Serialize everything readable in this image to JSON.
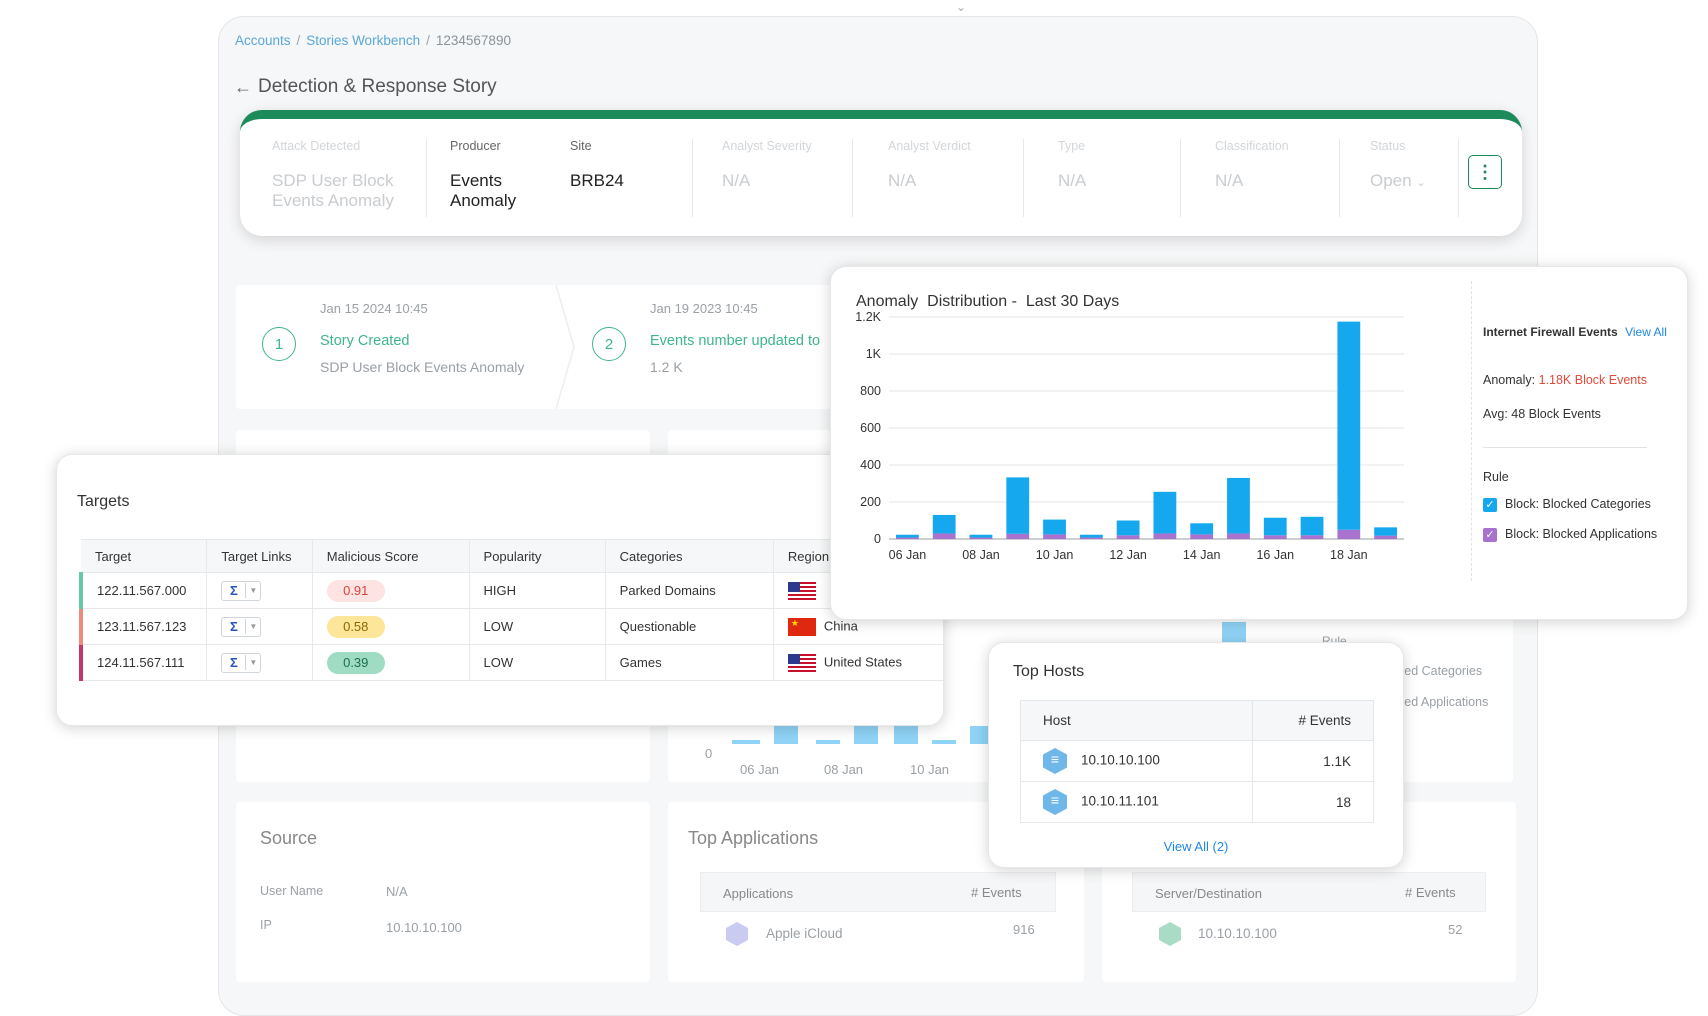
{
  "breadcrumb": {
    "accounts": "Accounts",
    "workbench": "Stories Workbench",
    "sep": "/",
    "id": "1234567890"
  },
  "page_title": "Detection & Response Story",
  "header": {
    "attack_label": "Attack Detected",
    "attack_value_1": "SDP User Block",
    "attack_value_2": "Events Anomaly",
    "producer_label": "Producer",
    "producer_value_1": "Events",
    "producer_value_2": "Anomaly",
    "site_label": "Site",
    "site_value": "BRB24",
    "severity_label": "Analyst Severity",
    "severity_value": "N/A",
    "verdict_label": "Analyst Verdict",
    "verdict_value": "N/A",
    "type_label": "Type",
    "type_value": "N/A",
    "classification_label": "Classification",
    "classification_value": "N/A",
    "status_label": "Status",
    "status_value": "Open"
  },
  "timeline": [
    {
      "num": "1",
      "date": "Jan 15 2024 10:45",
      "title": "Story Created",
      "sub": "SDP User Block Events Anomaly"
    },
    {
      "num": "2",
      "date": "Jan 19 2023 10:45",
      "title": "Events number updated to",
      "sub": "1.2 K"
    }
  ],
  "targets": {
    "title": "Targets",
    "headers": [
      "Target",
      "Target Links",
      "Malicious Score",
      "Popularity",
      "Categories",
      "Region"
    ],
    "rows": [
      {
        "target": "122.11.567.000",
        "score": "0.91",
        "popularity": "HIGH",
        "category": "Parked Domains",
        "region": "",
        "accent": "#67c8a6",
        "pill_bg": "#fde3e2",
        "pill_fg": "#d9423a",
        "flag": "us"
      },
      {
        "target": "123.11.567.123",
        "score": "0.58",
        "popularity": "LOW",
        "category": "Questionable",
        "region": "China",
        "accent": "#f08a80",
        "pill_bg": "#fde59a",
        "pill_fg": "#8a6a00",
        "flag": "cn"
      },
      {
        "target": "124.11.567.111",
        "score": "0.39",
        "popularity": "LOW",
        "category": "Games",
        "region": "United States",
        "accent": "#c0396e",
        "pill_bg": "#9fdcc3",
        "pill_fg": "#1c6e4d",
        "flag": "us"
      }
    ]
  },
  "anomaly": {
    "title": "Anomaly  Distribution -  Last 30 Days",
    "firewall_label": "Internet Firewall Events",
    "view_all": "View All",
    "anomaly_label": "Anomaly:",
    "anomaly_value": "1.18K Block Events",
    "avg_label": "Avg:",
    "avg_value": "48 Block Events",
    "rule_label": "Rule",
    "rule_1": "Block: Blocked Categories",
    "rule_2": "Block: Blocked Applications",
    "colors": {
      "categories": "#16a8ee",
      "applications": "#a773cf"
    }
  },
  "chart_data": {
    "type": "bar",
    "stacked": true,
    "x_tick_labels": [
      "06 Jan",
      "08 Jan",
      "10 Jan",
      "12 Jan",
      "14 Jan",
      "16 Jan",
      "18 Jan"
    ],
    "y_ticks": [
      "0",
      "200",
      "400",
      "600",
      "800",
      "1K",
      "1.2K"
    ],
    "ylim": [
      0,
      1200
    ],
    "grid": true,
    "series": [
      {
        "name": "Block: Blocked Categories",
        "values": [
          15,
          100,
          15,
          305,
          80,
          15,
          80,
          225,
          60,
          300,
          95,
          100,
          1125,
          45
        ]
      },
      {
        "name": "Block: Blocked Applications",
        "values": [
          8,
          30,
          8,
          28,
          25,
          8,
          20,
          30,
          25,
          30,
          20,
          20,
          50,
          18
        ]
      }
    ]
  },
  "hosts": {
    "title": "Top Hosts",
    "headers": [
      "Host",
      "# Events"
    ],
    "rows": [
      {
        "host": "10.10.10.100",
        "events": "1.1K"
      },
      {
        "host": "10.10.11.101",
        "events": "18"
      }
    ],
    "view_all": "View All (2)"
  },
  "source": {
    "title": "Source",
    "user_label": "User Name",
    "user_value": "N/A",
    "ip_label": "IP",
    "ip_value": "10.10.10.100"
  },
  "apps": {
    "title": "Top Applications",
    "col1": "Applications",
    "col2": "# Events",
    "row_name": "Apple iCloud",
    "row_value": "916"
  },
  "dest": {
    "col1": "Server/Destination",
    "col2": "# Events",
    "row_name": "10.10.10.100",
    "row_value": "52"
  },
  "bg_fragments": {
    "rule": "Rule",
    "cat": "ked Categories",
    "app": "ked Applications",
    "x1": "06 Jan",
    "x2": "08 Jan",
    "x3": "10 Jan",
    "zero": "0"
  }
}
